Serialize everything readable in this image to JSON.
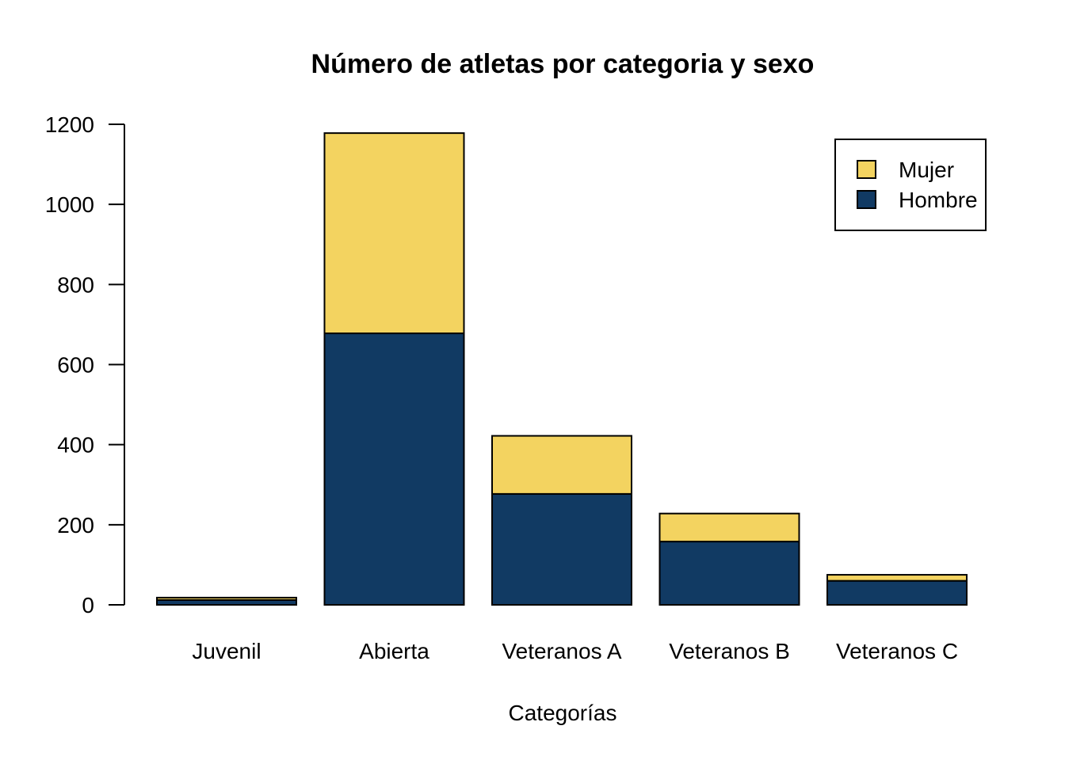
{
  "chart_data": {
    "type": "bar",
    "stacked": true,
    "title": "Número de atletas por categoria y sexo",
    "xlabel": "Categorías",
    "ylabel": "",
    "categories": [
      "Juvenil",
      "Abierta",
      "Veteranos A",
      "Veteranos B",
      "Veteranos C"
    ],
    "series": [
      {
        "name": "Hombre",
        "color": "#113a63",
        "values": [
          12,
          678,
          277,
          158,
          60
        ]
      },
      {
        "name": "Mujer",
        "color": "#f3d360",
        "values": [
          6,
          500,
          145,
          70,
          15
        ]
      }
    ],
    "ylim": [
      0,
      1200
    ],
    "yticks": [
      "0",
      "200",
      "400",
      "600",
      "800",
      "1000",
      "1200"
    ],
    "grid": false,
    "legend": {
      "placement": "top-right",
      "entries": [
        "Mujer",
        "Hombre"
      ]
    }
  }
}
